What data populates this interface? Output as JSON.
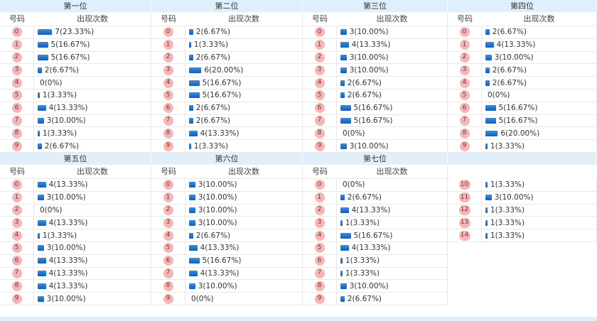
{
  "col_head_number": "号码",
  "col_head_count": "出现次数",
  "positions": [
    {
      "title": "第一位",
      "rows": [
        {
          "num": "0",
          "count": 7,
          "text": "7(23.33%)"
        },
        {
          "num": "1",
          "count": 5,
          "text": "5(16.67%)"
        },
        {
          "num": "2",
          "count": 5,
          "text": "5(16.67%)"
        },
        {
          "num": "3",
          "count": 2,
          "text": "2(6.67%)"
        },
        {
          "num": "4",
          "count": 0,
          "text": "0(0%)"
        },
        {
          "num": "5",
          "count": 1,
          "text": "1(3.33%)"
        },
        {
          "num": "6",
          "count": 4,
          "text": "4(13.33%)"
        },
        {
          "num": "7",
          "count": 3,
          "text": "3(10.00%)"
        },
        {
          "num": "8",
          "count": 1,
          "text": "1(3.33%)"
        },
        {
          "num": "9",
          "count": 2,
          "text": "2(6.67%)"
        }
      ]
    },
    {
      "title": "第二位",
      "rows": [
        {
          "num": "0",
          "count": 2,
          "text": "2(6.67%)"
        },
        {
          "num": "1",
          "count": 1,
          "text": "1(3.33%)"
        },
        {
          "num": "2",
          "count": 2,
          "text": "2(6.67%)"
        },
        {
          "num": "3",
          "count": 6,
          "text": "6(20.00%)"
        },
        {
          "num": "4",
          "count": 5,
          "text": "5(16.67%)"
        },
        {
          "num": "5",
          "count": 5,
          "text": "5(16.67%)"
        },
        {
          "num": "6",
          "count": 2,
          "text": "2(6.67%)"
        },
        {
          "num": "7",
          "count": 2,
          "text": "2(6.67%)"
        },
        {
          "num": "8",
          "count": 4,
          "text": "4(13.33%)"
        },
        {
          "num": "9",
          "count": 1,
          "text": "1(3.33%)"
        }
      ]
    },
    {
      "title": "第三位",
      "rows": [
        {
          "num": "0",
          "count": 3,
          "text": "3(10.00%)"
        },
        {
          "num": "1",
          "count": 4,
          "text": "4(13.33%)"
        },
        {
          "num": "2",
          "count": 3,
          "text": "3(10.00%)"
        },
        {
          "num": "3",
          "count": 3,
          "text": "3(10.00%)"
        },
        {
          "num": "4",
          "count": 2,
          "text": "2(6.67%)"
        },
        {
          "num": "5",
          "count": 2,
          "text": "2(6.67%)"
        },
        {
          "num": "6",
          "count": 5,
          "text": "5(16.67%)"
        },
        {
          "num": "7",
          "count": 5,
          "text": "5(16.67%)"
        },
        {
          "num": "8",
          "count": 0,
          "text": "0(0%)"
        },
        {
          "num": "9",
          "count": 3,
          "text": "3(10.00%)"
        }
      ]
    },
    {
      "title": "第四位",
      "rows": [
        {
          "num": "0",
          "count": 2,
          "text": "2(6.67%)"
        },
        {
          "num": "1",
          "count": 4,
          "text": "4(13.33%)"
        },
        {
          "num": "2",
          "count": 3,
          "text": "3(10.00%)"
        },
        {
          "num": "3",
          "count": 2,
          "text": "2(6.67%)"
        },
        {
          "num": "4",
          "count": 2,
          "text": "2(6.67%)"
        },
        {
          "num": "5",
          "count": 0,
          "text": "0(0%)"
        },
        {
          "num": "6",
          "count": 5,
          "text": "5(16.67%)"
        },
        {
          "num": "7",
          "count": 5,
          "text": "5(16.67%)"
        },
        {
          "num": "8",
          "count": 6,
          "text": "6(20.00%)"
        },
        {
          "num": "9",
          "count": 1,
          "text": "1(3.33%)"
        }
      ]
    },
    {
      "title": "第五位",
      "rows": [
        {
          "num": "0",
          "count": 4,
          "text": "4(13.33%)"
        },
        {
          "num": "1",
          "count": 3,
          "text": "3(10.00%)"
        },
        {
          "num": "2",
          "count": 0,
          "text": "0(0%)"
        },
        {
          "num": "3",
          "count": 4,
          "text": "4(13.33%)"
        },
        {
          "num": "4",
          "count": 1,
          "text": "1(3.33%)"
        },
        {
          "num": "5",
          "count": 3,
          "text": "3(10.00%)"
        },
        {
          "num": "6",
          "count": 4,
          "text": "4(13.33%)"
        },
        {
          "num": "7",
          "count": 4,
          "text": "4(13.33%)"
        },
        {
          "num": "8",
          "count": 4,
          "text": "4(13.33%)"
        },
        {
          "num": "9",
          "count": 3,
          "text": "3(10.00%)"
        }
      ]
    },
    {
      "title": "第六位",
      "rows": [
        {
          "num": "0",
          "count": 3,
          "text": "3(10.00%)"
        },
        {
          "num": "1",
          "count": 3,
          "text": "3(10.00%)"
        },
        {
          "num": "2",
          "count": 3,
          "text": "3(10.00%)"
        },
        {
          "num": "3",
          "count": 3,
          "text": "3(10.00%)"
        },
        {
          "num": "4",
          "count": 2,
          "text": "2(6.67%)"
        },
        {
          "num": "5",
          "count": 4,
          "text": "4(13.33%)"
        },
        {
          "num": "6",
          "count": 5,
          "text": "5(16.67%)"
        },
        {
          "num": "7",
          "count": 4,
          "text": "4(13.33%)"
        },
        {
          "num": "8",
          "count": 3,
          "text": "3(10.00%)"
        },
        {
          "num": "9",
          "count": 0,
          "text": "0(0%)"
        }
      ]
    },
    {
      "title": "第七位",
      "rows": [
        {
          "num": "0",
          "count": 0,
          "text": "0(0%)"
        },
        {
          "num": "1",
          "count": 2,
          "text": "2(6.67%)"
        },
        {
          "num": "2",
          "count": 4,
          "text": "4(13.33%)"
        },
        {
          "num": "3",
          "count": 1,
          "text": "1(3.33%)"
        },
        {
          "num": "4",
          "count": 5,
          "text": "5(16.67%)"
        },
        {
          "num": "5",
          "count": 4,
          "text": "4(13.33%)"
        },
        {
          "num": "6",
          "count": 1,
          "text": "1(3.33%)"
        },
        {
          "num": "7",
          "count": 1,
          "text": "1(3.33%)"
        },
        {
          "num": "8",
          "count": 3,
          "text": "3(10.00%)"
        },
        {
          "num": "9",
          "count": 2,
          "text": "2(6.67%)"
        }
      ]
    },
    {
      "title": "",
      "rows": [
        {
          "num": "10",
          "count": 1,
          "text": "1(3.33%)"
        },
        {
          "num": "11",
          "count": 3,
          "text": "3(10.00%)"
        },
        {
          "num": "12",
          "count": 1,
          "text": "1(3.33%)"
        },
        {
          "num": "13",
          "count": 1,
          "text": "1(3.33%)"
        },
        {
          "num": "14",
          "count": 1,
          "text": "1(3.33%)"
        }
      ]
    }
  ]
}
